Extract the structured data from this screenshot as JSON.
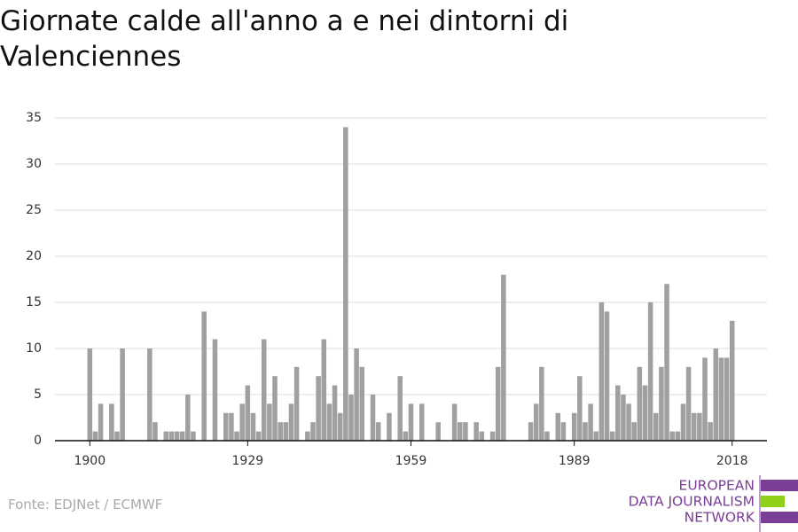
{
  "chart_data": {
    "type": "bar",
    "title": "Giornate calde all'anno a e nei dintorni di Valenciennes",
    "x": [
      1900,
      1901,
      1902,
      1903,
      1904,
      1905,
      1906,
      1907,
      1908,
      1909,
      1910,
      1911,
      1912,
      1913,
      1914,
      1915,
      1916,
      1917,
      1918,
      1919,
      1920,
      1921,
      1922,
      1923,
      1924,
      1925,
      1926,
      1927,
      1928,
      1929,
      1930,
      1931,
      1932,
      1933,
      1934,
      1935,
      1936,
      1937,
      1938,
      1939,
      1940,
      1941,
      1942,
      1943,
      1944,
      1945,
      1946,
      1947,
      1948,
      1949,
      1950,
      1951,
      1952,
      1953,
      1954,
      1955,
      1956,
      1957,
      1958,
      1959,
      1960,
      1961,
      1962,
      1963,
      1964,
      1965,
      1966,
      1967,
      1968,
      1969,
      1970,
      1971,
      1972,
      1973,
      1974,
      1975,
      1976,
      1977,
      1978,
      1979,
      1980,
      1981,
      1982,
      1983,
      1984,
      1985,
      1986,
      1987,
      1988,
      1989,
      1990,
      1991,
      1992,
      1993,
      1994,
      1995,
      1996,
      1997,
      1998,
      1999,
      2000,
      2001,
      2002,
      2003,
      2004,
      2005,
      2006,
      2007,
      2008,
      2009,
      2010,
      2011,
      2012,
      2013,
      2014,
      2015,
      2016,
      2017,
      2018
    ],
    "values": [
      10,
      1,
      4,
      0,
      4,
      1,
      10,
      0,
      0,
      0,
      0,
      10,
      2,
      0,
      1,
      1,
      1,
      1,
      5,
      1,
      0,
      14,
      0,
      11,
      0,
      3,
      3,
      1,
      4,
      6,
      3,
      1,
      11,
      4,
      7,
      2,
      2,
      4,
      8,
      0,
      1,
      2,
      7,
      11,
      4,
      6,
      3,
      34,
      5,
      10,
      8,
      0,
      5,
      2,
      0,
      3,
      0,
      7,
      1,
      4,
      0,
      4,
      0,
      0,
      2,
      0,
      0,
      4,
      2,
      2,
      0,
      2,
      1,
      0,
      1,
      8,
      18,
      0,
      0,
      0,
      0,
      2,
      4,
      8,
      1,
      0,
      3,
      2,
      0,
      3,
      7,
      2,
      4,
      1,
      15,
      14,
      1,
      6,
      5,
      4,
      2,
      8,
      6,
      15,
      3,
      8,
      17,
      1,
      1,
      4,
      8,
      3,
      3,
      9,
      2,
      10,
      9,
      9,
      13
    ],
    "color": "#a0a0a0",
    "xlim": [
      1893.6,
      2024.4
    ],
    "xticks": [
      1900,
      1929,
      1959,
      1989,
      2018
    ],
    "ylim": [
      0,
      35
    ],
    "yticks": [
      0,
      5,
      10,
      15,
      20,
      25,
      30,
      35
    ],
    "grid": true
  },
  "source": "Fonte: EDJNet / ECMWF",
  "logo": {
    "lines": [
      "EUROPEAN",
      "DATA JOURNALISM",
      "NETWORK"
    ]
  }
}
